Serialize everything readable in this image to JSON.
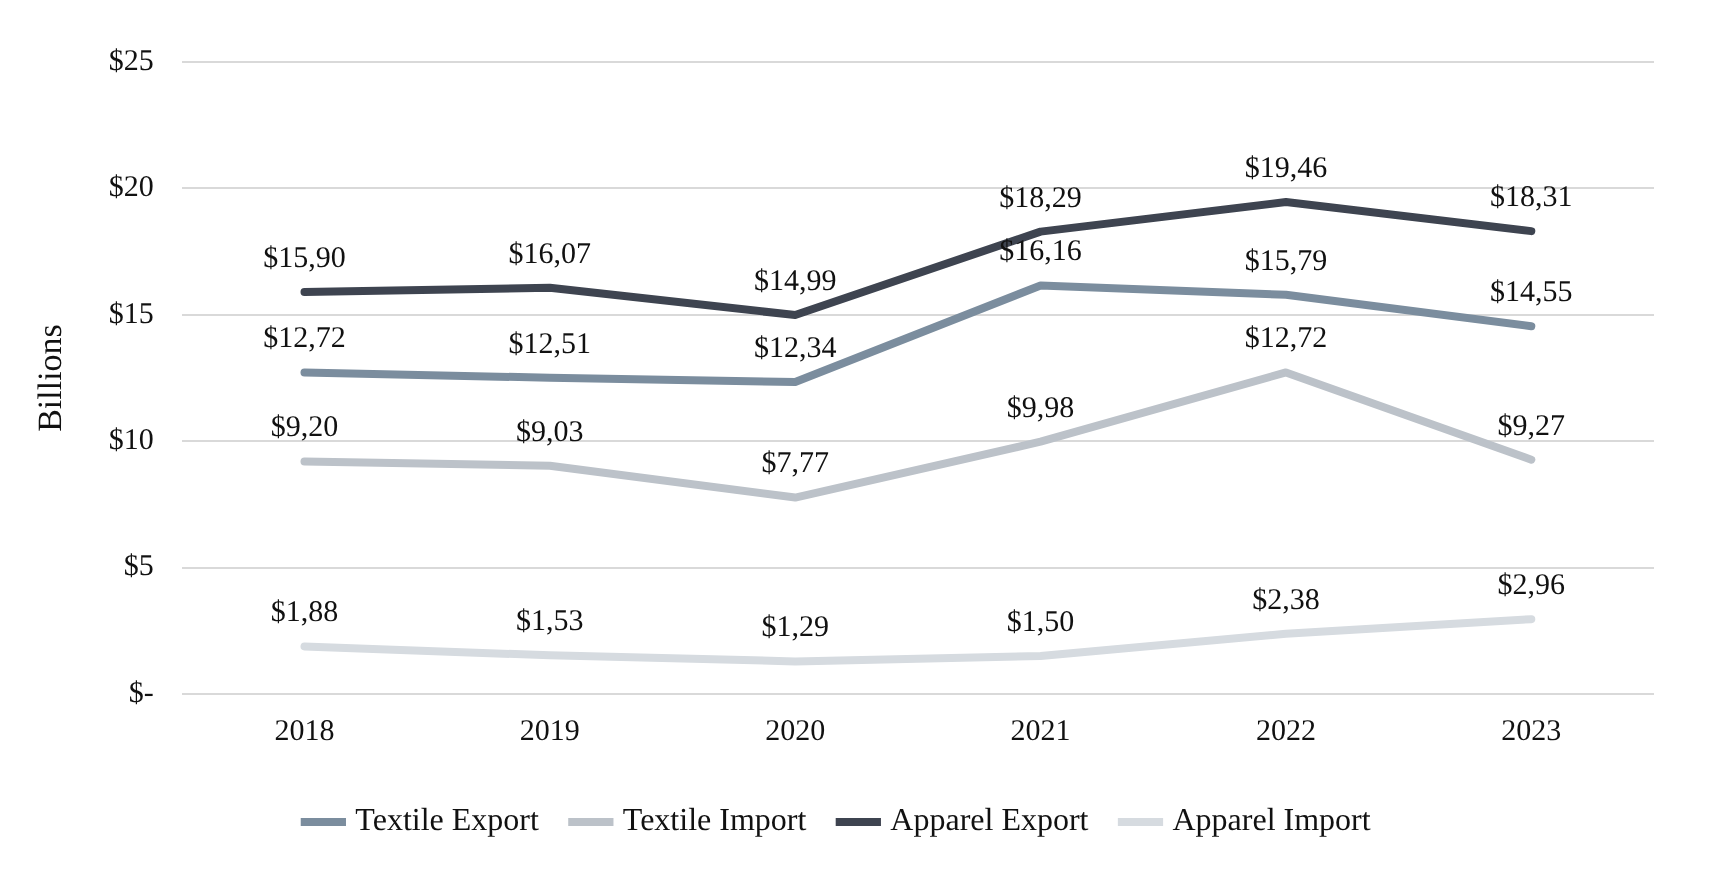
{
  "chart_data": {
    "type": "line",
    "ylabel": "Billions",
    "categories": [
      "2018",
      "2019",
      "2020",
      "2021",
      "2022",
      "2023"
    ],
    "series": [
      {
        "name": "Textile Export",
        "color": "#7b8d9e",
        "values": [
          12.72,
          12.51,
          12.34,
          16.16,
          15.79,
          14.55
        ],
        "value_labels": [
          "$12,72",
          "$12,51",
          "$12,34",
          "$16,16",
          "$15,79",
          "$14,55"
        ]
      },
      {
        "name": "Textile Import",
        "color": "#bcc2c9",
        "values": [
          9.2,
          9.03,
          7.77,
          9.98,
          12.72,
          9.27
        ],
        "value_labels": [
          "$9,20",
          "$9,03",
          "$7,77",
          "$9,98",
          "$12,72",
          "$9,27"
        ]
      },
      {
        "name": "Apparel Export",
        "color": "#3e4450",
        "values": [
          15.9,
          16.07,
          14.99,
          18.29,
          19.46,
          18.31
        ],
        "value_labels": [
          "$15,90",
          "$16,07",
          "$14,99",
          "$18,29",
          "$19,46",
          "$18,31"
        ]
      },
      {
        "name": "Apparel Import",
        "color": "#d6dbe0",
        "values": [
          1.88,
          1.53,
          1.29,
          1.5,
          2.38,
          2.96
        ],
        "value_labels": [
          "$1,88",
          "$1,53",
          "$1,29",
          "$1,50",
          "$2,38",
          "$2,96"
        ]
      }
    ],
    "ylim": [
      0,
      25
    ],
    "yticks": [
      {
        "value": 0,
        "label": "$-"
      },
      {
        "value": 5,
        "label": "$5"
      },
      {
        "value": 10,
        "label": "$10"
      },
      {
        "value": 15,
        "label": "$15"
      },
      {
        "value": 20,
        "label": "$20"
      },
      {
        "value": 25,
        "label": "$25"
      }
    ],
    "grid": "y",
    "legend": "bottom",
    "marker": "none",
    "line_style": "solid"
  }
}
